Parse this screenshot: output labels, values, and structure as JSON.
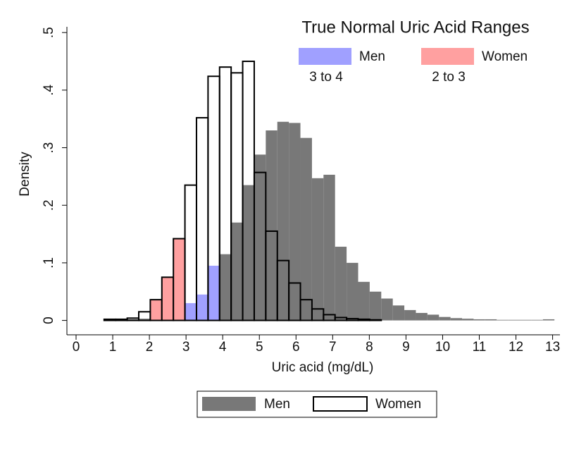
{
  "chart_data": {
    "type": "histogram",
    "xlabel": "Uric acid (mg/dL)",
    "ylabel": "Density",
    "bins": [
      0.45,
      0.765,
      1.08,
      1.395,
      1.71,
      2.025,
      2.34,
      2.655,
      2.97,
      3.285,
      3.6,
      3.915,
      4.23,
      4.545,
      4.86,
      5.175,
      5.49,
      5.805,
      6.12,
      6.435,
      6.75,
      7.065,
      7.38,
      7.695,
      8.01,
      8.325,
      8.64,
      8.955,
      9.27,
      9.585,
      9.9,
      10.215,
      10.53,
      10.845,
      11.16,
      11.475,
      11.79,
      12.105,
      12.42,
      12.735,
      13.05
    ],
    "series": [
      {
        "name": "Men",
        "color": "#787878",
        "outline": false,
        "values": [
          0,
          0.001,
          0.001,
          0.002,
          0.003,
          0.006,
          0.009,
          0.018,
          0.03,
          0.045,
          0.095,
          0.115,
          0.17,
          0.235,
          0.288,
          0.33,
          0.345,
          0.343,
          0.317,
          0.247,
          0.253,
          0.128,
          0.1,
          0.067,
          0.05,
          0.038,
          0.026,
          0.018,
          0.013,
          0.01,
          0.006,
          0.004,
          0.003,
          0.002,
          0.002,
          0.001,
          0.001,
          0.001,
          0.001,
          0.002
        ]
      },
      {
        "name": "Women",
        "color": "#000000",
        "outline": true,
        "values": [
          0,
          0.002,
          0.002,
          0.004,
          0.015,
          0.036,
          0.075,
          0.142,
          0.235,
          0.352,
          0.424,
          0.44,
          0.43,
          0.45,
          0.257,
          0.155,
          0.104,
          0.065,
          0.036,
          0.02,
          0.01,
          0.005,
          0.003,
          0.002,
          0.001,
          0,
          0,
          0,
          0,
          0,
          0,
          0,
          0,
          0,
          0,
          0,
          0,
          0,
          0,
          0
        ]
      }
    ],
    "ranges_title": "True Normal Uric Acid Ranges",
    "ranges": [
      {
        "name": "Men",
        "label": "3 to 4",
        "from": 3,
        "to": 4,
        "color": "#a0a0ff"
      },
      {
        "name": "Women",
        "label": "2 to 3",
        "from": 2,
        "to": 3,
        "color": "#ffa0a0"
      }
    ],
    "xlim": [
      -0.25,
      13.2
    ],
    "ylim": [
      -0.025,
      0.51
    ],
    "xticks": [
      0,
      1,
      2,
      3,
      4,
      5,
      6,
      7,
      8,
      9,
      10,
      11,
      12,
      13
    ],
    "yticks": [
      {
        "value": 0,
        "label": "0"
      },
      {
        "value": 0.1,
        "label": ".1"
      },
      {
        "value": 0.2,
        "label": ".2"
      },
      {
        "value": 0.3,
        "label": ".3"
      },
      {
        "value": 0.4,
        "label": ".4"
      },
      {
        "value": 0.5,
        "label": ".5"
      }
    ],
    "legend": "bottom"
  }
}
